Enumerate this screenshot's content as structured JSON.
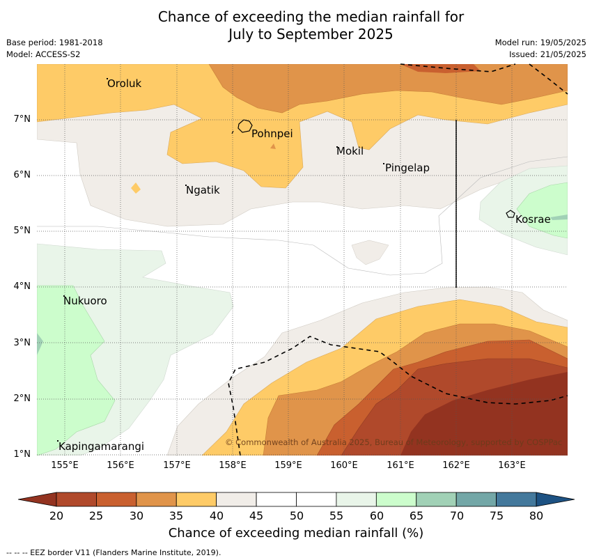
{
  "title": {
    "line1": "Chance of exceeding the median rainfall for",
    "line2": "July to September 2025"
  },
  "meta_left": {
    "base_period": "Base period: 1981-2018",
    "model": "Model: ACCESS-S2"
  },
  "meta_right": {
    "model_run": "Model run: 19/05/2025",
    "issued": "Issued: 21/05/2025"
  },
  "map": {
    "lat_labels": [
      "7°N",
      "6°N",
      "5°N",
      "4°N",
      "3°N",
      "2°N",
      "1°N"
    ],
    "lon_labels": [
      "155°E",
      "156°E",
      "157°E",
      "158°E",
      "159°E",
      "160°E",
      "161°E",
      "162°E",
      "163°E"
    ],
    "places": {
      "oroluk": "Oroluk",
      "pohnpei": "Pohnpei",
      "mokil": "Mokil",
      "pingelap": "Pingelap",
      "ngatik": "Ngatik",
      "kosrae": "Kosrae",
      "nukuoro": "Nukuoro",
      "kapingamarangi": "Kapingamarangi"
    },
    "copyright": "© Commonwealth of Australia 2025, Bureau of Meteorology, supported by COSPPac"
  },
  "colorbar": {
    "ticks": [
      "20",
      "25",
      "30",
      "35",
      "40",
      "45",
      "50",
      "55",
      "60",
      "65",
      "70",
      "75",
      "80"
    ],
    "colors": [
      "#b0492b",
      "#c9602f",
      "#e0944a",
      "#fecb67",
      "#f1ede8",
      "#ffffff",
      "#ffffff",
      "#e9f5e9",
      "#ccfdcc",
      "#a1d1b6",
      "#73a7a7",
      "#44799c"
    ],
    "under_color": "#933320",
    "over_color": "#1d5283",
    "label": "Chance of exceeding median rainfall (%)"
  },
  "footer": "--  --  -- EEZ border V11 (Flanders Marine Institute, 2019)."
}
